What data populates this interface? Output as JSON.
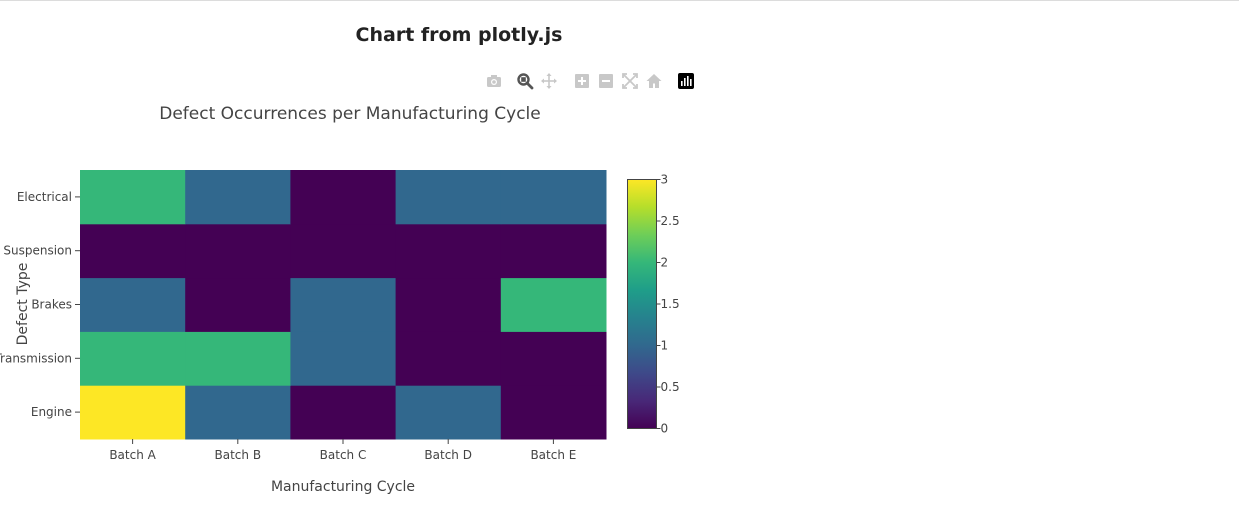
{
  "page": {
    "title": "Chart from plotly.js"
  },
  "modebar": {
    "buttons": [
      {
        "name": "camera-icon",
        "label": "Download plot as a png"
      },
      {
        "name": "zoom-icon",
        "label": "Zoom"
      },
      {
        "name": "pan-icon",
        "label": "Pan"
      },
      {
        "name": "zoom-in-icon",
        "label": "Zoom in"
      },
      {
        "name": "zoom-out-icon",
        "label": "Zoom out"
      },
      {
        "name": "autoscale-icon",
        "label": "Autoscale"
      },
      {
        "name": "home-icon",
        "label": "Reset axes"
      },
      {
        "name": "plotly-logo-icon",
        "label": "Produced with Plotly"
      }
    ]
  },
  "chart_data": {
    "type": "heatmap",
    "title": "Defect Occurrences per Manufacturing Cycle",
    "xlabel": "Manufacturing Cycle",
    "ylabel": "Defect Type",
    "x": [
      "Batch A",
      "Batch B",
      "Batch C",
      "Batch D",
      "Batch E"
    ],
    "y": [
      "Engine",
      "Transmission",
      "Brakes",
      "Suspension",
      "Electrical"
    ],
    "z": [
      [
        3,
        1,
        0,
        1,
        0
      ],
      [
        2,
        2,
        1,
        0,
        0
      ],
      [
        1,
        0,
        1,
        0,
        2
      ],
      [
        0,
        0,
        0,
        0,
        0
      ],
      [
        2,
        1,
        0,
        1,
        1
      ]
    ],
    "colorscale": "Viridis",
    "zrange": [
      0,
      3
    ],
    "colorbar": {
      "ticks": [
        "0",
        "0.5",
        "1",
        "1.5",
        "2",
        "2.5",
        "3"
      ],
      "tick_values": [
        0,
        0.5,
        1,
        1.5,
        2,
        2.5,
        3
      ]
    },
    "grid": false
  }
}
